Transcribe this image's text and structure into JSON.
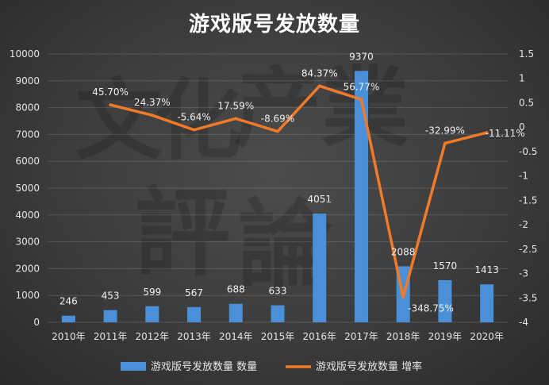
{
  "chart_data": {
    "type": "bar",
    "title": "游戏版号发放数量",
    "categories": [
      "2010年",
      "2011年",
      "2012年",
      "2013年",
      "2014年",
      "2015年",
      "2016年",
      "2017年",
      "2018年",
      "2019年",
      "2020年"
    ],
    "series": [
      {
        "name": "游戏版号发放数量 数量",
        "type": "bar",
        "axis": "left",
        "color": "#4a90d9",
        "values": [
          246,
          453,
          599,
          567,
          688,
          633,
          4051,
          9370,
          2088,
          1570,
          1413
        ],
        "labels": [
          "246",
          "453",
          "599",
          "567",
          "688",
          "633",
          "4051",
          "9370",
          "2088",
          "1570",
          "1413"
        ]
      },
      {
        "name": "游戏版号发放数量 增率",
        "type": "line",
        "axis": "right",
        "color": "#f07a28",
        "values": [
          null,
          0.457,
          0.2437,
          -0.0564,
          0.1759,
          -0.0869,
          0.8437,
          0.5677,
          -3.4875,
          -0.3299,
          -0.1111
        ],
        "labels": [
          "",
          "45.70%",
          "24.37%",
          "-5.64%",
          "17.59%",
          "-8.69%",
          "84.37%",
          "56.77%",
          "-348.75%",
          "-32.99%",
          "-11.11%"
        ]
      }
    ],
    "y_left": {
      "min": 0,
      "max": 10000,
      "ticks": [
        "0",
        "1000",
        "2000",
        "3000",
        "4000",
        "5000",
        "6000",
        "7000",
        "8000",
        "9000",
        "10000"
      ]
    },
    "y_right": {
      "min": -4,
      "max": 1.5,
      "ticks": [
        "-4",
        "-3.5",
        "-3",
        "-2.5",
        "-2",
        "-1.5",
        "-1",
        "-0.5",
        "0",
        "0.5",
        "1",
        "1.5"
      ]
    },
    "legend_position": "bottom",
    "grid": true
  },
  "watermark": [
    "文",
    "化",
    "产",
    "業",
    "評",
    "論"
  ]
}
